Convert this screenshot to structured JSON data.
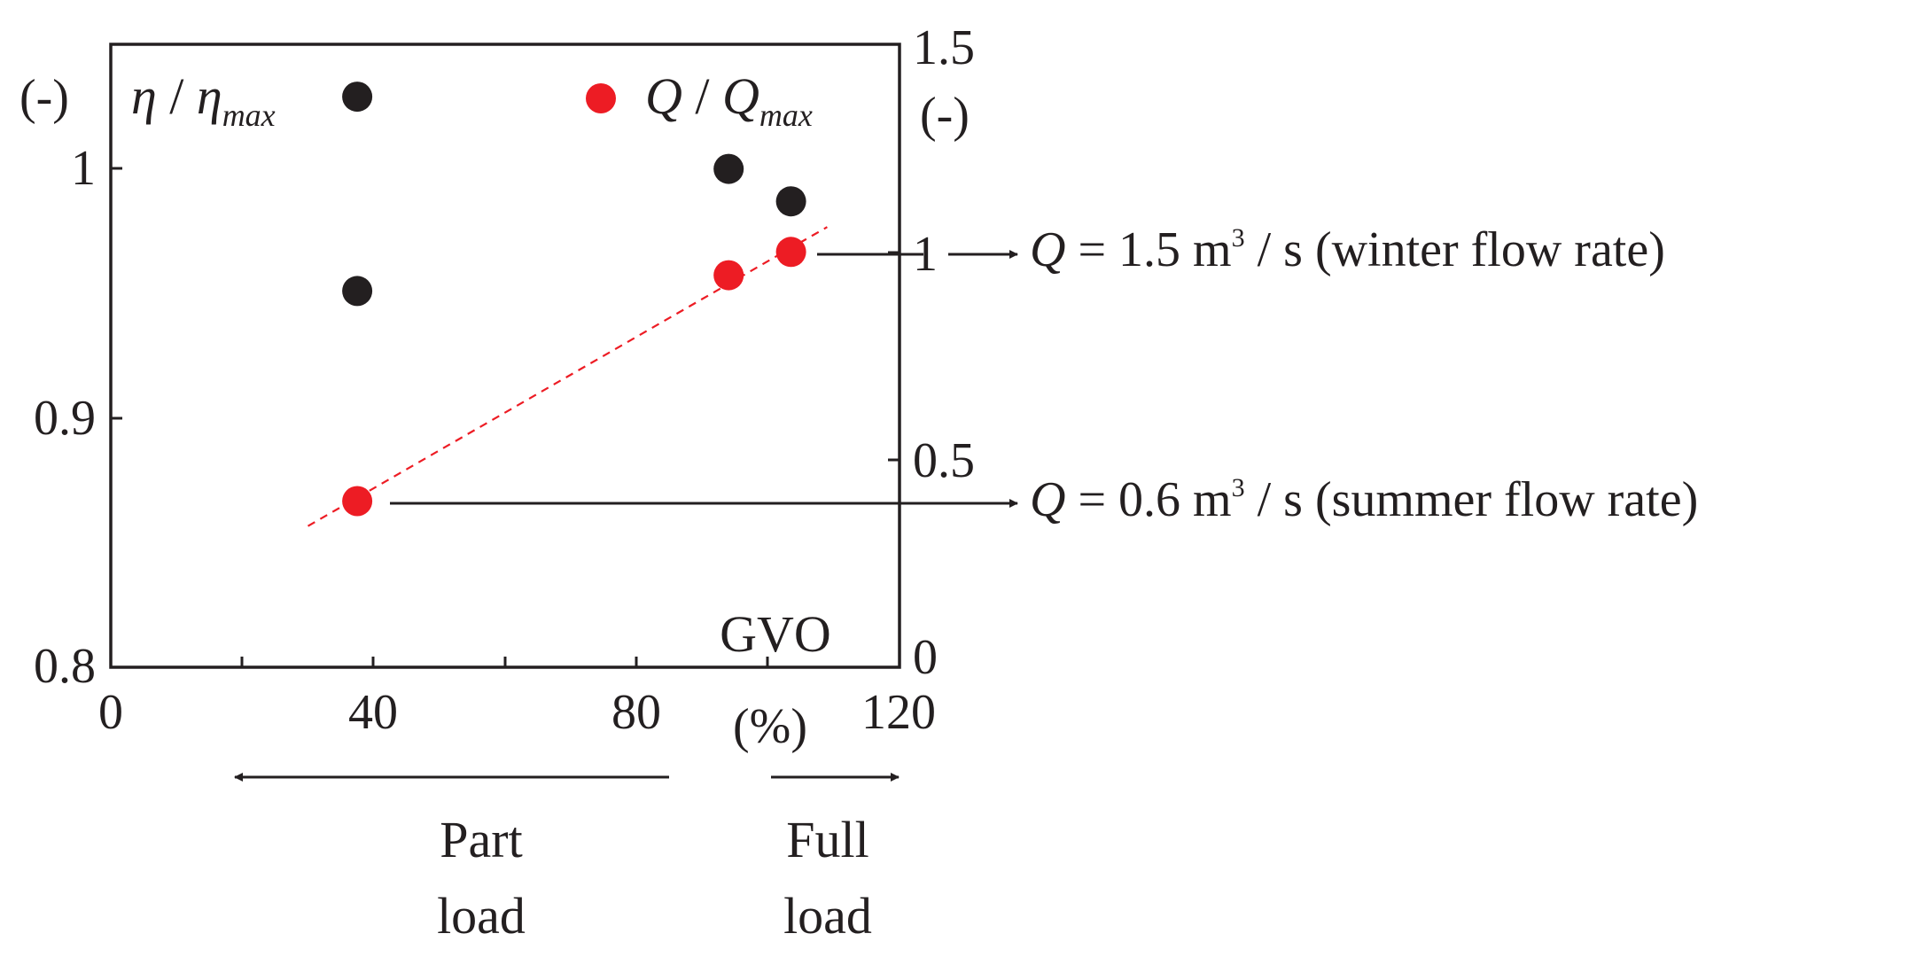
{
  "chart_data": {
    "type": "scatter",
    "xlabel": "GVO",
    "xunit": "(%)",
    "xlim": [
      0,
      120
    ],
    "xticks": [
      0,
      40,
      80,
      120
    ],
    "xtick_labels": [
      "0",
      "40",
      "80",
      "120"
    ],
    "left_axis": {
      "label_main": "η",
      "label_slash": " / ",
      "label_denom": "η",
      "label_sub": "max",
      "unit": "(-)",
      "ylim": [
        0.8,
        1.05
      ],
      "ticks": [
        0.8,
        0.9,
        1.0
      ],
      "tick_labels": [
        "0.8",
        "0.9",
        "1"
      ]
    },
    "right_axis": {
      "label_main": "Q",
      "label_slash": " / ",
      "label_denom": "Q",
      "label_sub": "max",
      "unit": "(-)",
      "ylim": [
        0,
        1.5
      ],
      "ticks": [
        0,
        0.5,
        1,
        1.5
      ],
      "tick_labels": [
        "0",
        "0.5",
        "1",
        "1.5"
      ]
    },
    "series": [
      {
        "name": "η / ηmax",
        "axis": "left",
        "color": "#231f20",
        "x": [
          37.5,
          37.5,
          94,
          103.5
        ],
        "y": [
          1.029,
          0.951,
          1.0,
          0.987
        ]
      },
      {
        "name": "Q / Qmax",
        "axis": "right",
        "color": "#ed1c24",
        "x": [
          37.5,
          94,
          103.5
        ],
        "y": [
          0.4,
          0.944,
          1.0
        ]
      }
    ],
    "trendline": {
      "series": "Q / Qmax",
      "axis": "right",
      "color": "#ed1c24",
      "style": "dashed",
      "x": [
        30,
        109
      ],
      "y": [
        0.34,
        1.06
      ]
    },
    "annotations": [
      {
        "id": "winter",
        "var": "Q",
        "text_a": " = 1.5 m",
        "sup": "3",
        "text_b": " / s (winter flow rate)",
        "points_to_x": 103.5,
        "points_to_y": 1.0,
        "axis": "right"
      },
      {
        "id": "summer",
        "var": "Q",
        "text_a": " = 0.6 m",
        "sup": "3",
        "text_b": " / s (summer flow rate)",
        "points_to_x": 37.5,
        "points_to_y": 0.4,
        "axis": "right"
      }
    ],
    "load_labels": {
      "part_line1": "Part",
      "part_line2": "load",
      "full_line1": "Full",
      "full_line2": "load"
    }
  }
}
